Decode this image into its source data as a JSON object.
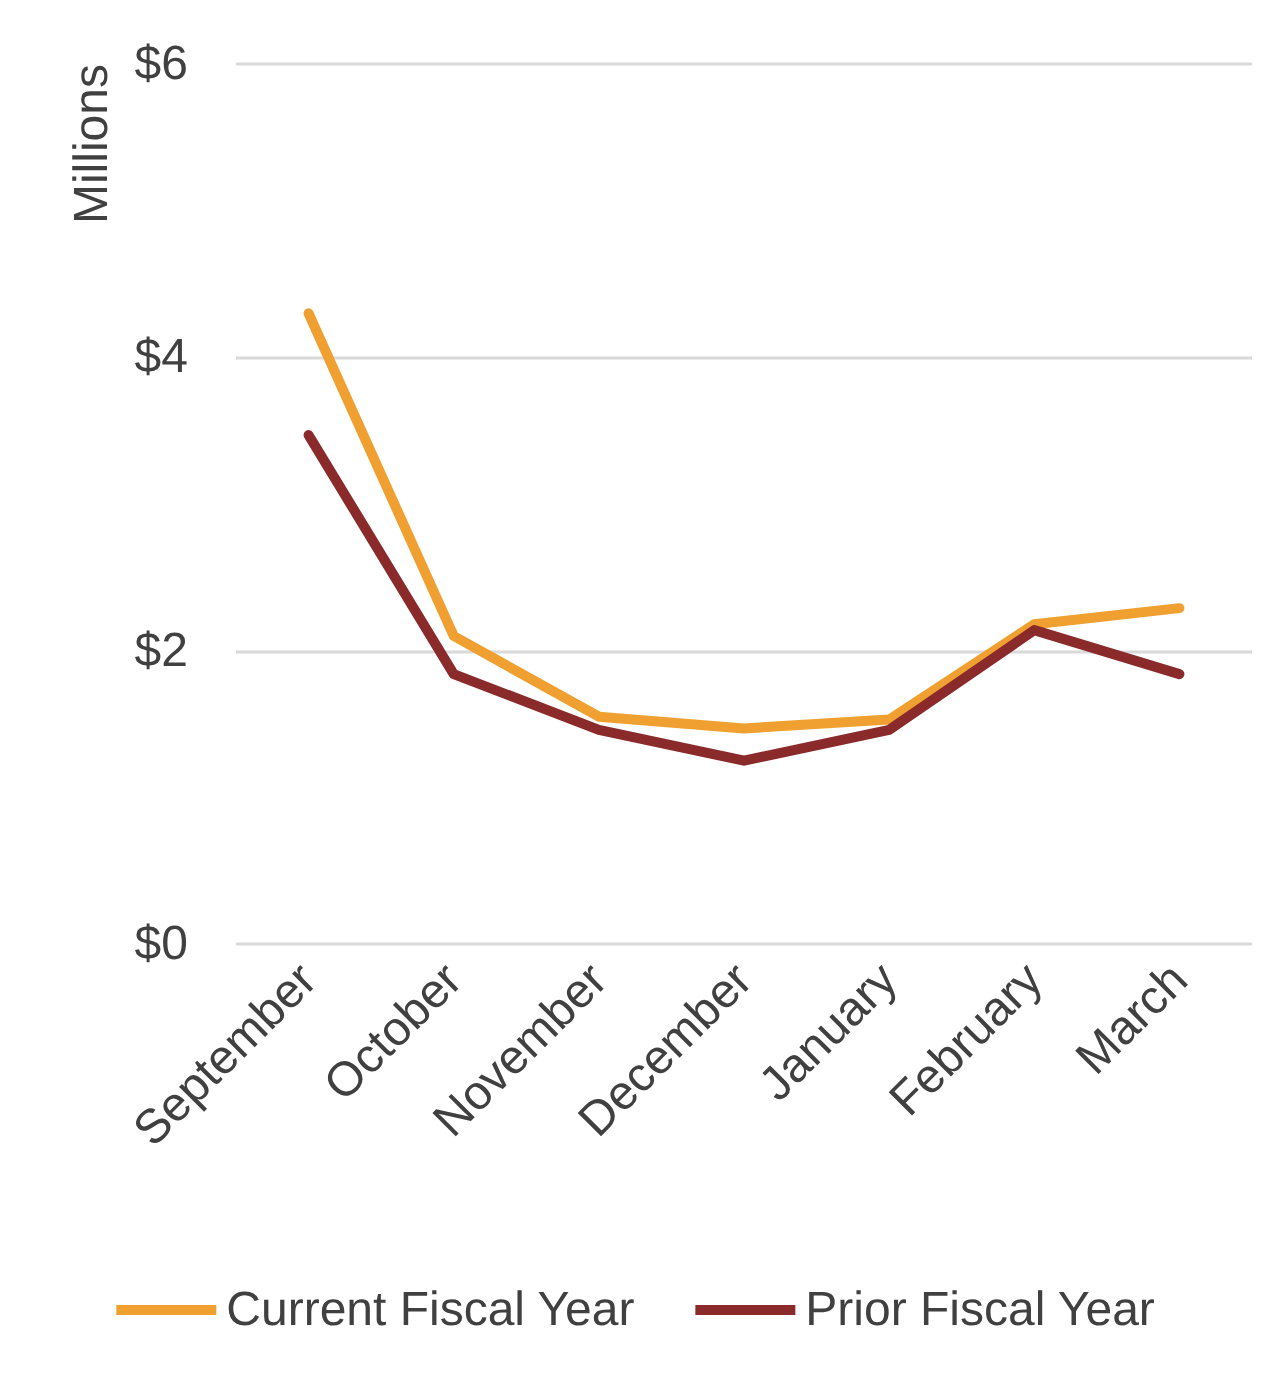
{
  "chart_data": {
    "type": "line",
    "ylabel": "Millions",
    "categories": [
      "September",
      "October",
      "November",
      "December",
      "January",
      "February",
      "March"
    ],
    "series": [
      {
        "name": "Current Fiscal Year",
        "color": "#f0a030",
        "values": [
          4.3,
          2.1,
          1.55,
          1.47,
          1.53,
          2.18,
          2.29
        ]
      },
      {
        "name": "Prior Fiscal Year",
        "color": "#8b2a2a",
        "values": [
          3.47,
          1.84,
          1.46,
          1.25,
          1.46,
          2.14,
          1.84
        ]
      }
    ],
    "ylim": [
      0,
      6
    ],
    "yticks": [
      {
        "value": 0,
        "label": "$0"
      },
      {
        "value": 2,
        "label": "$2"
      },
      {
        "value": 4,
        "label": "$4"
      },
      {
        "value": 6,
        "label": "$6"
      }
    ],
    "grid": "y",
    "legend": "bottom",
    "marker": "none",
    "line_style": "solid"
  }
}
